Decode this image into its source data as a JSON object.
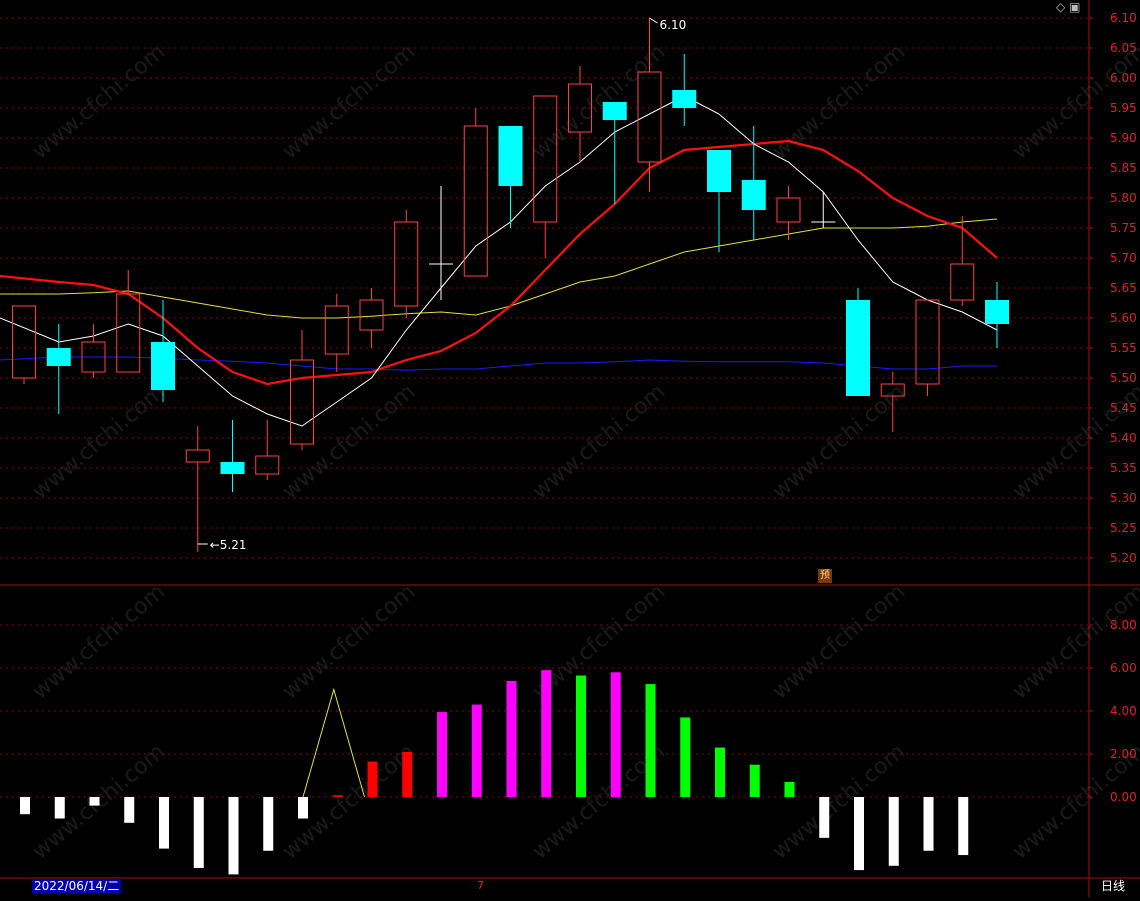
{
  "chart_data": [
    {
      "type": "candlestick",
      "y_ticks": [
        "6.10",
        "6.05",
        "6.00",
        "5.95",
        "5.90",
        "5.85",
        "5.80",
        "5.75",
        "5.70",
        "5.65",
        "5.60",
        "5.55",
        "5.50",
        "5.45",
        "5.40",
        "5.35",
        "5.30",
        "5.25",
        "5.20"
      ],
      "ylim": [
        5.16,
        6.12
      ],
      "candles": [
        {
          "o": 5.5,
          "h": 5.62,
          "l": 5.49,
          "c": 5.62
        },
        {
          "o": 5.55,
          "h": 5.59,
          "l": 5.44,
          "c": 5.52
        },
        {
          "o": 5.51,
          "h": 5.59,
          "l": 5.5,
          "c": 5.56
        },
        {
          "o": 5.51,
          "h": 5.68,
          "l": 5.51,
          "c": 5.64
        },
        {
          "o": 5.56,
          "h": 5.63,
          "l": 5.46,
          "c": 5.48
        },
        {
          "o": 5.36,
          "h": 5.42,
          "l": 5.21,
          "c": 5.38
        },
        {
          "o": 5.36,
          "h": 5.43,
          "l": 5.31,
          "c": 5.34
        },
        {
          "o": 5.34,
          "h": 5.43,
          "l": 5.33,
          "c": 5.37
        },
        {
          "o": 5.39,
          "h": 5.58,
          "l": 5.38,
          "c": 5.53
        },
        {
          "o": 5.54,
          "h": 5.64,
          "l": 5.51,
          "c": 5.62
        },
        {
          "o": 5.58,
          "h": 5.65,
          "l": 5.55,
          "c": 5.63
        },
        {
          "o": 5.62,
          "h": 5.78,
          "l": 5.6,
          "c": 5.76
        },
        {
          "o": 5.69,
          "h": 5.82,
          "l": 5.63,
          "c": 5.69
        },
        {
          "o": 5.67,
          "h": 5.95,
          "l": 5.67,
          "c": 5.92
        },
        {
          "o": 5.92,
          "h": 5.92,
          "l": 5.75,
          "c": 5.82
        },
        {
          "o": 5.76,
          "h": 5.97,
          "l": 5.7,
          "c": 5.97
        },
        {
          "o": 5.91,
          "h": 6.02,
          "l": 5.86,
          "c": 5.99
        },
        {
          "o": 5.96,
          "h": 5.96,
          "l": 5.79,
          "c": 5.93
        },
        {
          "o": 5.86,
          "h": 6.1,
          "l": 5.81,
          "c": 6.01
        },
        {
          "o": 5.98,
          "h": 6.04,
          "l": 5.92,
          "c": 5.95
        },
        {
          "o": 5.88,
          "h": 5.88,
          "l": 5.71,
          "c": 5.81
        },
        {
          "o": 5.83,
          "h": 5.92,
          "l": 5.73,
          "c": 5.78
        },
        {
          "o": 5.76,
          "h": 5.82,
          "l": 5.73,
          "c": 5.8
        },
        {
          "o": 5.76,
          "h": 5.81,
          "l": 5.75,
          "c": 5.76
        },
        {
          "o": 5.63,
          "h": 5.65,
          "l": 5.47,
          "c": 5.47
        },
        {
          "o": 5.47,
          "h": 5.51,
          "l": 5.41,
          "c": 5.49
        },
        {
          "o": 5.49,
          "h": 5.63,
          "l": 5.47,
          "c": 5.63
        },
        {
          "o": 5.63,
          "h": 5.77,
          "l": 5.62,
          "c": 5.69
        },
        {
          "o": 5.63,
          "h": 5.66,
          "l": 5.55,
          "c": 5.59
        }
      ],
      "ma_short": [
        5.6,
        5.56,
        5.57,
        5.59,
        5.57,
        5.52,
        5.47,
        5.44,
        5.42,
        5.46,
        5.5,
        5.58,
        5.65,
        5.72,
        5.76,
        5.82,
        5.86,
        5.91,
        5.94,
        5.97,
        5.94,
        5.89,
        5.86,
        5.81,
        5.73,
        5.66,
        5.63,
        5.61,
        5.58
      ],
      "ma_mid": [
        5.67,
        5.66,
        5.655,
        5.64,
        5.6,
        5.55,
        5.51,
        5.49,
        5.5,
        5.505,
        5.51,
        5.53,
        5.545,
        5.575,
        5.62,
        5.68,
        5.74,
        5.79,
        5.85,
        5.88,
        5.885,
        5.89,
        5.895,
        5.88,
        5.845,
        5.8,
        5.77,
        5.75,
        5.7
      ],
      "ma_long": [
        5.64,
        5.64,
        5.642,
        5.645,
        5.635,
        5.625,
        5.615,
        5.605,
        5.6,
        5.6,
        5.603,
        5.607,
        5.61,
        5.605,
        5.62,
        5.64,
        5.66,
        5.67,
        5.69,
        5.71,
        5.72,
        5.73,
        5.74,
        5.75,
        5.75,
        5.75,
        5.753,
        5.76,
        5.765
      ],
      "ma_base": [
        5.53,
        5.535,
        5.535,
        5.535,
        5.533,
        5.53,
        5.528,
        5.525,
        5.52,
        5.515,
        5.515,
        5.513,
        5.515,
        5.515,
        5.52,
        5.525,
        5.525,
        5.527,
        5.53,
        5.528,
        5.527,
        5.527,
        5.527,
        5.525,
        5.52,
        5.515,
        5.515,
        5.52,
        5.52
      ],
      "annotations": {
        "high": "6.10",
        "low": "5.21"
      }
    },
    {
      "type": "bar",
      "y_ticks": [
        "8.00",
        "6.00",
        "4.00",
        "2.00",
        "0.00"
      ],
      "ylim": [
        -4.0,
        9.5
      ],
      "values": [
        -0.8,
        -1.0,
        -0.4,
        -1.2,
        -2.4,
        -3.3,
        -3.6,
        -2.5,
        -1.0,
        0.08,
        1.65,
        2.1,
        3.95,
        4.3,
        5.4,
        5.9,
        5.65,
        5.8,
        5.25,
        3.7,
        2.3,
        1.5,
        0.7,
        -1.9,
        -3.4,
        -3.2,
        -2.5,
        -2.7
      ],
      "colors": [
        "#ffffff",
        "#ffffff",
        "#ffffff",
        "#ffffff",
        "#ffffff",
        "#ffffff",
        "#ffffff",
        "#ffffff",
        "#ffffff",
        "#ff0000",
        "#ff0000",
        "#ff0000",
        "#ff00ff",
        "#ff00ff",
        "#ff00ff",
        "#ff00ff",
        "#00ff00",
        "#ff00ff",
        "#00ff00",
        "#00ff00",
        "#00ff00",
        "#00ff00",
        "#00ff00",
        "#ffffff",
        "#ffffff",
        "#ffffff",
        "#ffffff",
        "#ffffff"
      ],
      "line": [
        0,
        5.0,
        0
      ]
    }
  ],
  "footer": {
    "date": "2022/06/14/二",
    "tick": "7",
    "period": "日线",
    "badge": "预"
  },
  "icons": [
    "diamond-icon",
    "window-icon"
  ],
  "watermark": "www.cfchi.com"
}
